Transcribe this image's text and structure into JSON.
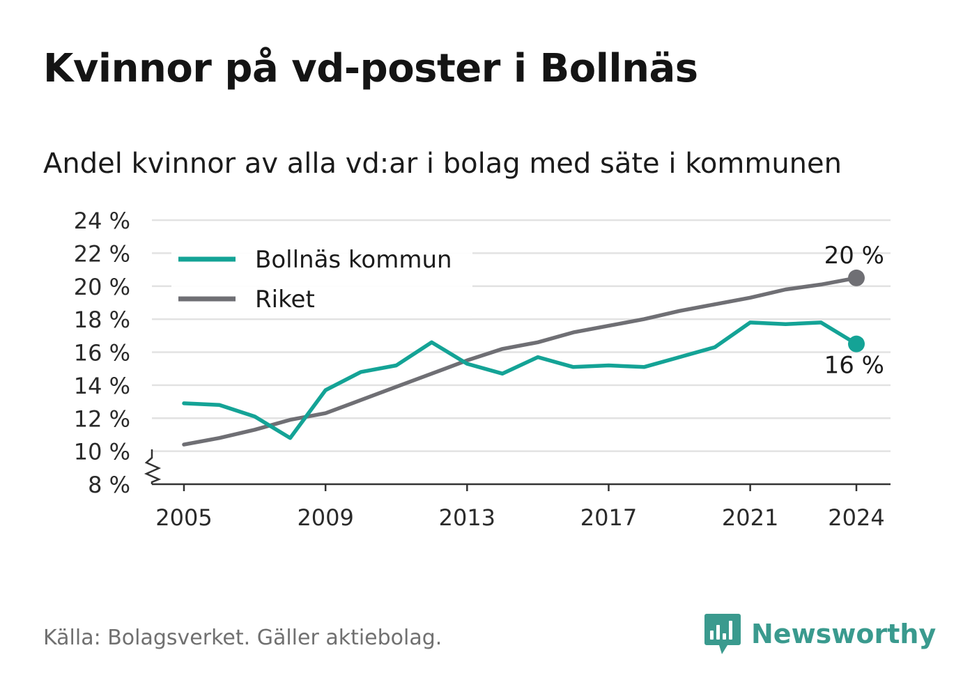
{
  "title": "Kvinnor på vd-poster i Bollnäs",
  "subtitle": "Andel kvinnor av alla vd:ar i bolag med säte i kommunen",
  "source": "Källa: Bolagsverket. Gäller aktiebolag.",
  "brand": {
    "name": "Newsworthy",
    "color": "#3a9a8e",
    "icon": "newsworthy-logo-icon"
  },
  "colors": {
    "bollnas": "#14a396",
    "riket": "#6f6f74",
    "grid": "#e2e2e2",
    "axis": "#333333"
  },
  "chart_data": {
    "type": "line",
    "x": [
      2005,
      2006,
      2007,
      2008,
      2009,
      2010,
      2011,
      2012,
      2013,
      2014,
      2015,
      2016,
      2017,
      2018,
      2019,
      2020,
      2021,
      2022,
      2023,
      2024
    ],
    "series": [
      {
        "name": "Bollnäs kommun",
        "color": "#14a396",
        "values": [
          12.9,
          12.8,
          12.1,
          10.8,
          13.7,
          14.8,
          15.2,
          16.6,
          15.3,
          14.7,
          15.7,
          15.1,
          15.2,
          15.1,
          15.7,
          16.3,
          17.8,
          17.7,
          17.8,
          16.5
        ]
      },
      {
        "name": "Riket",
        "color": "#6f6f74",
        "values": [
          10.4,
          10.8,
          11.3,
          11.9,
          12.3,
          13.1,
          13.9,
          14.7,
          15.5,
          16.2,
          16.6,
          17.2,
          17.6,
          18.0,
          18.5,
          18.9,
          19.3,
          19.8,
          20.1,
          20.5
        ]
      }
    ],
    "x_ticks": [
      2005,
      2009,
      2013,
      2017,
      2021,
      2024
    ],
    "x_tick_labels": [
      "2005",
      "2009",
      "2013",
      "2017",
      "2021",
      "2024"
    ],
    "y_ticks": [
      8,
      10,
      12,
      14,
      16,
      18,
      20,
      22,
      24
    ],
    "y_tick_labels": [
      "8 %",
      "10 %",
      "12 %",
      "14 %",
      "16 %",
      "18 %",
      "20 %",
      "22 %",
      "24 %"
    ],
    "ylim": [
      8,
      24
    ],
    "xlim": [
      2005,
      2024
    ],
    "axis_break": true,
    "grid": true,
    "legend": "top-left",
    "end_labels": [
      {
        "series": "Riket",
        "text": "20 %"
      },
      {
        "series": "Bollnäs kommun",
        "text": "16 %"
      }
    ]
  }
}
